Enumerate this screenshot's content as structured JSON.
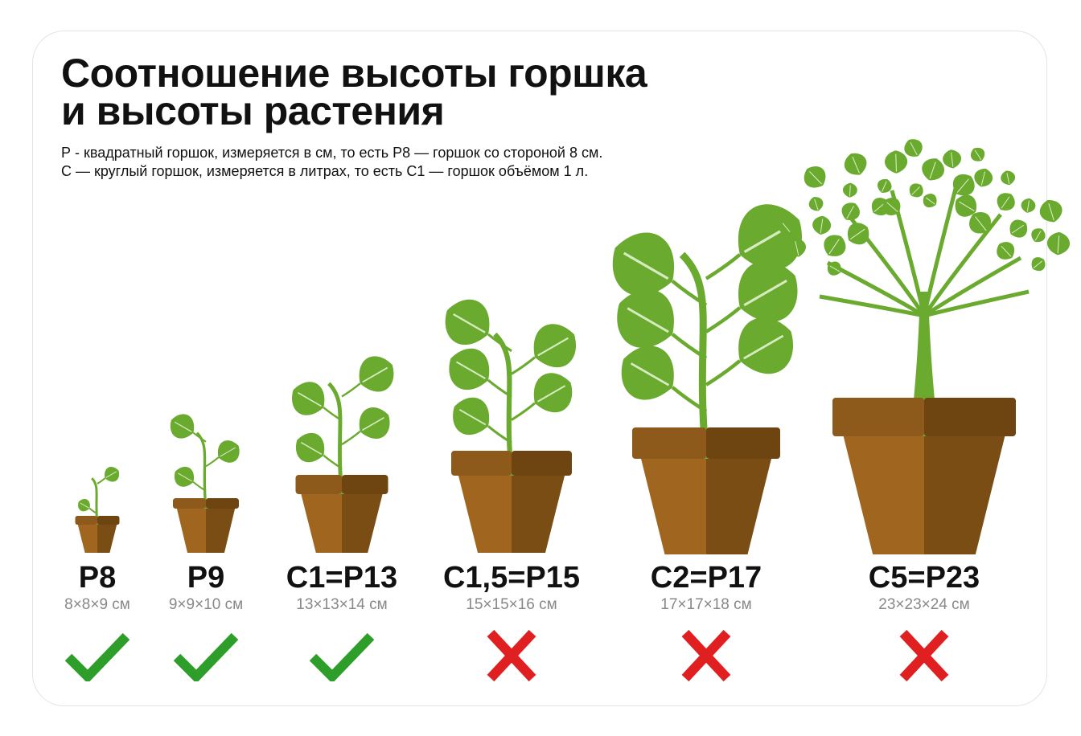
{
  "title": [
    "Соотношение высоты горшка",
    "и высоты растения"
  ],
  "description": [
    "Р - квадратный горшок, измеряется в см, то есть Р8 — горшок со стороной 8 см.",
    "С — круглый горшок, измеряется в литрах, то есть С1 — горшок объёмом 1 л."
  ],
  "pots": [
    {
      "name": "P8",
      "size": "8×8×9 см",
      "suitable": true
    },
    {
      "name": "P9",
      "size": "9×9×10 см",
      "suitable": true
    },
    {
      "name": "C1=P13",
      "size": "13×13×14 см",
      "suitable": true
    },
    {
      "name": "C1,5=P15",
      "size": "15×15×16 см",
      "suitable": false
    },
    {
      "name": "C2=P17",
      "size": "17×17×18 см",
      "suitable": false
    },
    {
      "name": "C5=P23",
      "size": "23×23×24 см",
      "suitable": false
    }
  ],
  "colors": {
    "leaf": "#6aaa2e",
    "pot_light": "#a0661f",
    "pot_dark": "#7a4d14",
    "check": "#2e9e2a",
    "cross": "#e02020"
  },
  "icons": {
    "suitable": "check-icon",
    "unsuitable": "cross-icon"
  }
}
